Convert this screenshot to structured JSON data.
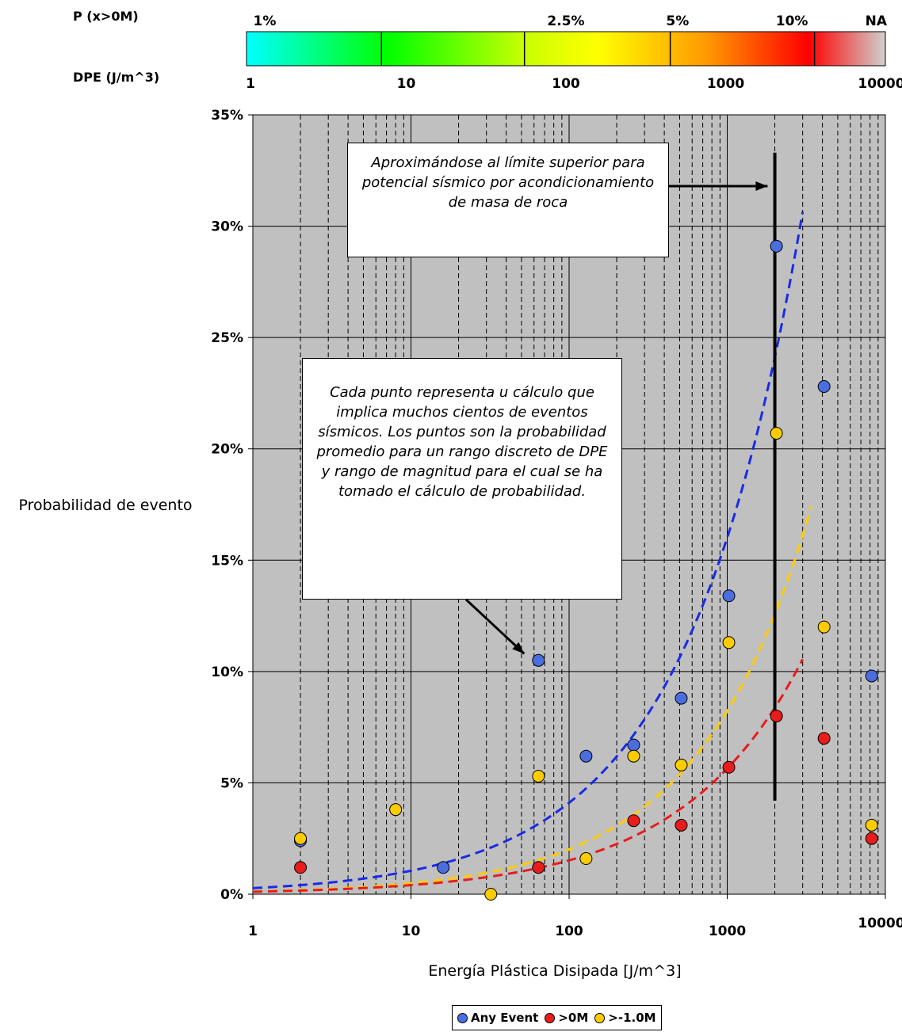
{
  "colorbar": {
    "p_label": "P (x>0M)",
    "dpe_label": "DPE (J/m^3)",
    "p_ticks": [
      {
        "label": "1%",
        "dpe": 1.3
      },
      {
        "label": "2.5%",
        "dpe": 100
      },
      {
        "label": "5%",
        "dpe": 500
      },
      {
        "label": "10%",
        "dpe": 2600
      },
      {
        "label": "NA",
        "dpe": 9000
      }
    ],
    "dpe_ticks": [
      "1",
      "10",
      "100",
      "1000",
      "10000"
    ],
    "dividers_dpe": [
      7,
      55,
      450,
      3600
    ]
  },
  "chart_data": {
    "type": "scatter",
    "x_scale": "log",
    "xlim": [
      1,
      10000
    ],
    "ylim": [
      0,
      35
    ],
    "xlabel": "Energía Plástica Disipada [J/m^3]",
    "ylabel": "Probabilidad de evento",
    "x_tick_labels": [
      "1",
      "10",
      "100",
      "1000",
      "10000"
    ],
    "y_tick_labels": [
      "0%",
      "5%",
      "10%",
      "15%",
      "20%",
      "25%",
      "30%",
      "35%"
    ],
    "y_ticks": [
      0,
      5,
      10,
      15,
      20,
      25,
      30,
      35
    ],
    "grid": true,
    "legend_position": "bottom",
    "series": [
      {
        "name": "Any Event",
        "color": "#4a6ee0",
        "points": [
          [
            2,
            2.4
          ],
          [
            16,
            1.2
          ],
          [
            64,
            10.5
          ],
          [
            128,
            6.2
          ],
          [
            256,
            6.7
          ],
          [
            512,
            8.8
          ],
          [
            1024,
            13.4
          ],
          [
            2048,
            29.1
          ],
          [
            4096,
            22.8
          ],
          [
            8192,
            9.8
          ]
        ]
      },
      {
        "name": ">0M",
        "color": "#e81c1c",
        "points": [
          [
            2,
            1.2
          ],
          [
            64,
            1.2
          ],
          [
            256,
            3.3
          ],
          [
            512,
            3.1
          ],
          [
            1024,
            5.7
          ],
          [
            2048,
            8.0
          ],
          [
            4096,
            7.0
          ],
          [
            8192,
            2.5
          ]
        ]
      },
      {
        "name": ">-1.0M",
        "color": "#ffcc00",
        "points": [
          [
            2,
            2.5
          ],
          [
            8,
            3.8
          ],
          [
            32,
            0.0
          ],
          [
            64,
            5.3
          ],
          [
            128,
            1.6
          ],
          [
            256,
            6.2
          ],
          [
            512,
            5.8
          ],
          [
            1024,
            11.3
          ],
          [
            2048,
            20.7
          ],
          [
            4096,
            12.0
          ],
          [
            8192,
            3.1
          ]
        ]
      }
    ],
    "trendlines": [
      {
        "series": "Any Event",
        "color": "#1a2be6",
        "x_end": 3000,
        "a": 0.27,
        "b": 0.591
      },
      {
        "series": ">-1.0M",
        "color": "#ffcc00",
        "x_end": 3400,
        "a": 0.12,
        "b": 0.612
      },
      {
        "series": ">0M",
        "color": "#e81c1c",
        "x_end": 3000,
        "a": 0.11,
        "b": 0.57
      }
    ],
    "limit_line_x": 2000,
    "limit_line_y": [
      4.2,
      33.3
    ],
    "annotations": [
      {
        "text": "Aproximándose al límite superior para potencial sísmico por acondicionamiento de masa de roca",
        "arrow_to": [
          1800,
          31.8
        ]
      },
      {
        "text": "Cada punto representa u cálculo que implica muchos cientos de eventos sísmicos. Los puntos son la probabilidad promedio para un rango discreto de DPE y rango de magnitud para el cual se ha tomado el cálculo de probabilidad.",
        "arrow_to": [
          52,
          10.8
        ]
      }
    ]
  }
}
